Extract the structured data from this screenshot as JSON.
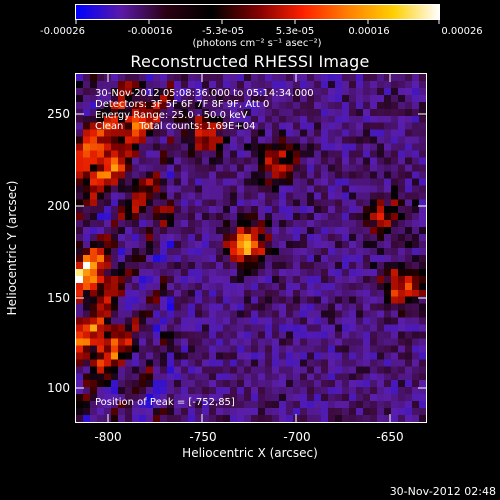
{
  "colorbar": {
    "tick_labels": [
      "-0.00026",
      "-0.00016",
      "-5.3e-05",
      "5.3e-05",
      "0.00016",
      "0.00026"
    ],
    "units": "(photons cm⁻² s⁻¹ asec⁻²)",
    "colors": [
      "#0000ff",
      "#5a1aa8",
      "#2a0010",
      "#000000",
      "#800000",
      "#ff2000",
      "#ff8000",
      "#ffd000",
      "#ffffff"
    ]
  },
  "title": "Reconstructed RHESSI Image",
  "info": {
    "time_range": "30-Nov-2012 05:08:36.000 to 05:14:34.000",
    "detectors": "Detectors: 3F 5F 6F 7F 8F 9F, Att 0",
    "energy": "Energy Range: 25.0 - 50.0 keV",
    "clean": "Clean     Total counts: 1.69E+04",
    "peak": "Position of Peak = [-752,85]"
  },
  "axes": {
    "xlabel": "Heliocentric X (arcsec)",
    "ylabel": "Heliocentric Y (arcsec)",
    "x_ticks": [
      "-800",
      "-750",
      "-700",
      "-650"
    ],
    "y_ticks": [
      "250",
      "200",
      "150",
      "100"
    ]
  },
  "footer": "30-Nov-2012 02:48"
}
